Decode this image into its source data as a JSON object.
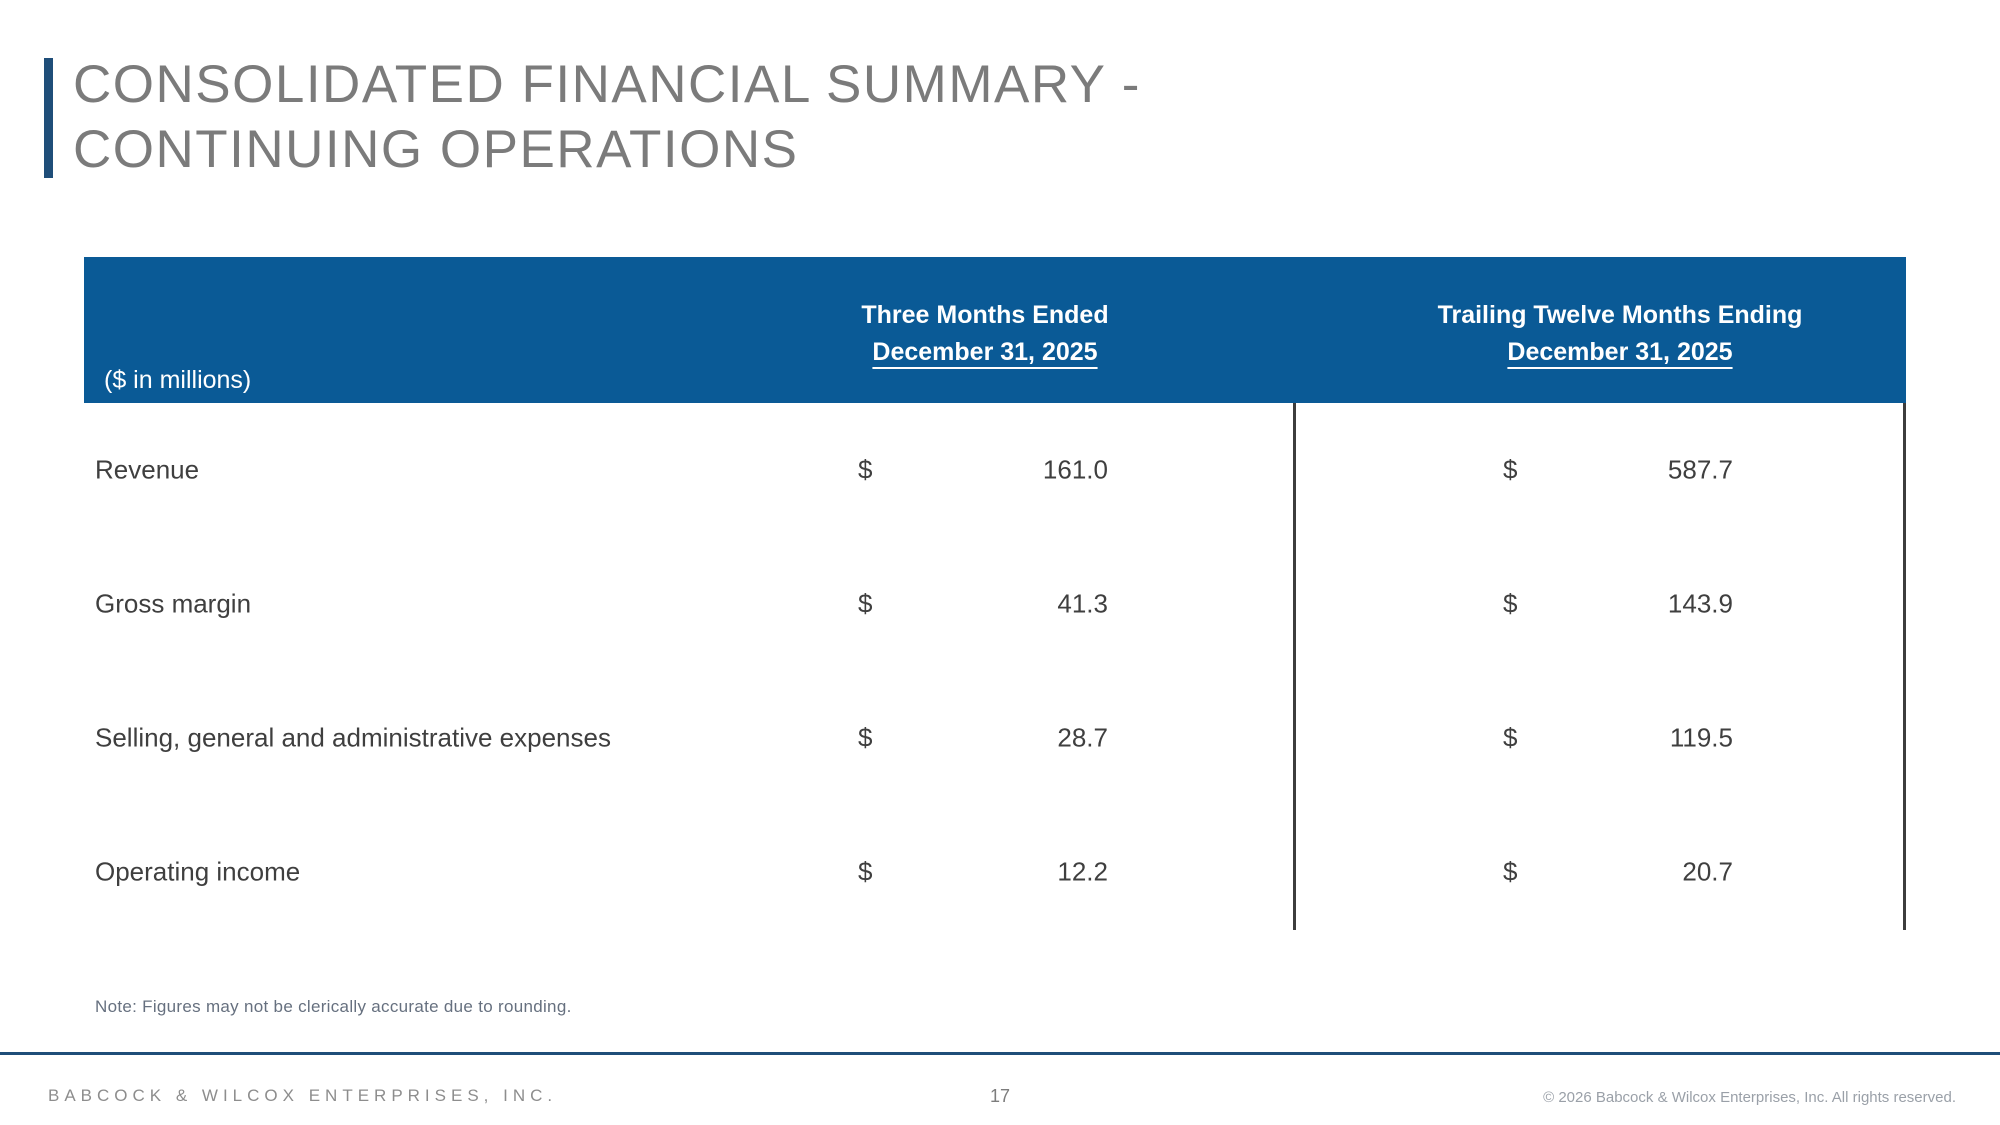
{
  "slide": {
    "title_line1": "CONSOLIDATED FINANCIAL SUMMARY -",
    "title_line2": "CONTINUING OPERATIONS"
  },
  "table": {
    "units_label": "($ in millions)",
    "currency_symbol": "$",
    "columns": [
      {
        "header_line1": "Three Months Ended",
        "header_line2": "December 31, 2025"
      },
      {
        "header_line1": "Trailing Twelve Months Ending",
        "header_line2": "December 31, 2025"
      }
    ],
    "rows": [
      {
        "label": "Revenue",
        "three_months": "161.0",
        "trailing_twelve": "587.7"
      },
      {
        "label": "Gross margin",
        "three_months": "41.3",
        "trailing_twelve": "143.9"
      },
      {
        "label": "Selling, general and administrative expenses",
        "three_months": "28.7",
        "trailing_twelve": "119.5"
      },
      {
        "label": "Operating income",
        "three_months": "12.2",
        "trailing_twelve": "20.7"
      }
    ]
  },
  "note": "Note: Figures may not be clerically accurate due to rounding.",
  "footer": {
    "company": "BABCOCK & WILCOX ENTERPRISES, INC.",
    "page_number": "17",
    "copyright": "© 2026 Babcock & Wilcox Enterprises, Inc. All rights reserved."
  },
  "colors": {
    "header_blue": "#0A5A96",
    "accent_navy": "#1F4E79",
    "title_gray": "#7B7B7B",
    "body_text": "#3F3F3F"
  }
}
